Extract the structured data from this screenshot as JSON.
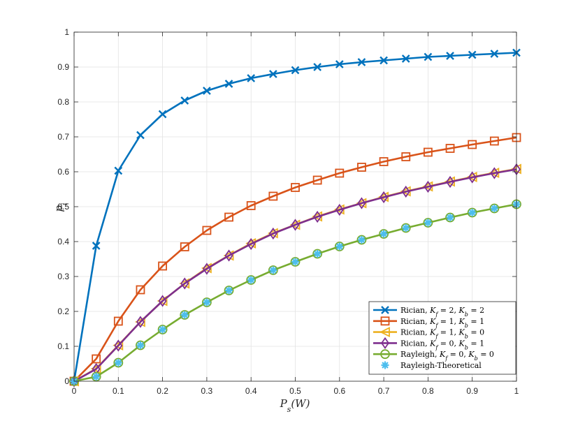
{
  "chart_data": {
    "type": "line",
    "xlabel": "P_s(W)",
    "ylabel": "p_i",
    "xlim": [
      0,
      1
    ],
    "ylim": [
      0,
      1
    ],
    "xticks": [
      "0",
      "0.1",
      "0.2",
      "0.3",
      "0.4",
      "0.5",
      "0.6",
      "0.7",
      "0.8",
      "0.9",
      "1"
    ],
    "yticks": [
      "0",
      "0.1",
      "0.2",
      "0.3",
      "0.4",
      "0.5",
      "0.6",
      "0.7",
      "0.8",
      "0.9",
      "1"
    ],
    "grid": true,
    "legend_position": "bottom-right",
    "x": [
      0,
      0.05,
      0.1,
      0.15,
      0.2,
      0.25,
      0.3,
      0.35,
      0.4,
      0.45,
      0.5,
      0.55,
      0.6,
      0.65,
      0.7,
      0.75,
      0.8,
      0.85,
      0.9,
      0.95,
      1
    ],
    "series": [
      {
        "name": "Rician, K_f = 2, K_b = 2",
        "color": "#0072BD",
        "marker": "x",
        "values": [
          0,
          0.388,
          0.603,
          0.705,
          0.765,
          0.804,
          0.832,
          0.852,
          0.868,
          0.88,
          0.891,
          0.9,
          0.908,
          0.914,
          0.919,
          0.924,
          0.929,
          0.932,
          0.935,
          0.938,
          0.941
        ]
      },
      {
        "name": "Rician, K_f = 1, K_b = 1",
        "color": "#D95319",
        "marker": "square",
        "values": [
          0,
          0.064,
          0.172,
          0.262,
          0.33,
          0.385,
          0.432,
          0.47,
          0.503,
          0.53,
          0.555,
          0.576,
          0.596,
          0.613,
          0.629,
          0.643,
          0.656,
          0.667,
          0.678,
          0.688,
          0.698
        ]
      },
      {
        "name": "Rician, K_f = 1, K_b = 0",
        "color": "#EDB120",
        "marker": "triangle-left",
        "values": [
          0,
          0.036,
          0.103,
          0.17,
          0.23,
          0.28,
          0.324,
          0.36,
          0.395,
          0.424,
          0.448,
          0.472,
          0.492,
          0.51,
          0.528,
          0.544,
          0.558,
          0.572,
          0.585,
          0.597,
          0.608
        ]
      },
      {
        "name": "Rician, K_f = 0, K_b = 1",
        "color": "#7E2F8E",
        "marker": "diamond",
        "values": [
          0,
          0.035,
          0.102,
          0.17,
          0.23,
          0.28,
          0.322,
          0.36,
          0.393,
          0.423,
          0.448,
          0.471,
          0.491,
          0.51,
          0.527,
          0.543,
          0.557,
          0.571,
          0.584,
          0.596,
          0.607
        ]
      },
      {
        "name": "Rayleigh, K_f = 0, K_b = 0",
        "color": "#77AC30",
        "marker": "circle",
        "values": [
          0,
          0.013,
          0.053,
          0.103,
          0.148,
          0.19,
          0.226,
          0.26,
          0.29,
          0.318,
          0.342,
          0.365,
          0.386,
          0.405,
          0.422,
          0.439,
          0.454,
          0.469,
          0.483,
          0.495,
          0.507
        ]
      },
      {
        "name": "Rayleigh-Theoretical",
        "color": "#4DBEEE",
        "marker": "asterisk",
        "line": false,
        "values": [
          0,
          0.013,
          0.053,
          0.103,
          0.148,
          0.19,
          0.226,
          0.26,
          0.29,
          0.318,
          0.342,
          0.365,
          0.386,
          0.405,
          0.422,
          0.439,
          0.454,
          0.469,
          0.483,
          0.495,
          0.507
        ]
      }
    ]
  }
}
